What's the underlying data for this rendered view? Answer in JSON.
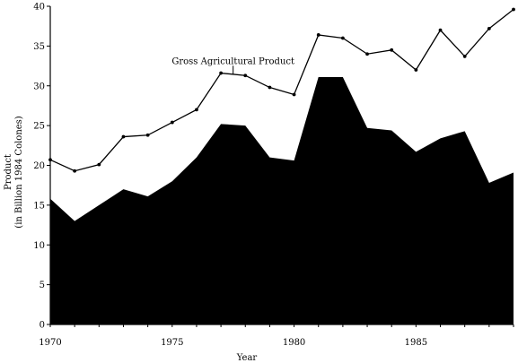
{
  "chart_data": {
    "type": "area",
    "xlabel": "Year",
    "ylabel_line1": "Product",
    "ylabel_line2": "(in Billion 1984 Colones)",
    "xlim": [
      1970,
      1989
    ],
    "ylim": [
      0,
      40
    ],
    "xticks": [
      1970,
      1975,
      1980,
      1985
    ],
    "yticks": [
      0,
      5,
      10,
      15,
      20,
      25,
      30,
      35,
      40
    ],
    "grid": false,
    "x": [
      1970,
      1971,
      1972,
      1973,
      1974,
      1975,
      1976,
      1977,
      1978,
      1979,
      1980,
      1981,
      1982,
      1983,
      1984,
      1985,
      1986,
      1987,
      1988,
      1989
    ],
    "series": [
      {
        "kind": "line",
        "values": [
          20.7,
          19.3,
          20.1,
          23.6,
          23.8,
          25.4,
          27.0,
          31.6,
          31.3,
          29.8,
          28.9,
          36.4,
          36.0,
          34.0,
          34.5,
          32.0,
          37.0,
          33.7,
          37.2,
          39.6
        ]
      },
      {
        "kind": "filled-area",
        "values": [
          15.8,
          13.0,
          15.0,
          17.0,
          16.1,
          18.0,
          21.0,
          25.2,
          25.0,
          21.0,
          20.6,
          31.1,
          31.1,
          24.7,
          24.4,
          21.7,
          23.4,
          24.3,
          17.8,
          19.1
        ]
      }
    ],
    "annotations": [
      {
        "text": "Gross Agricultural Product",
        "x": 1977.5,
        "y": 31.4
      }
    ]
  }
}
